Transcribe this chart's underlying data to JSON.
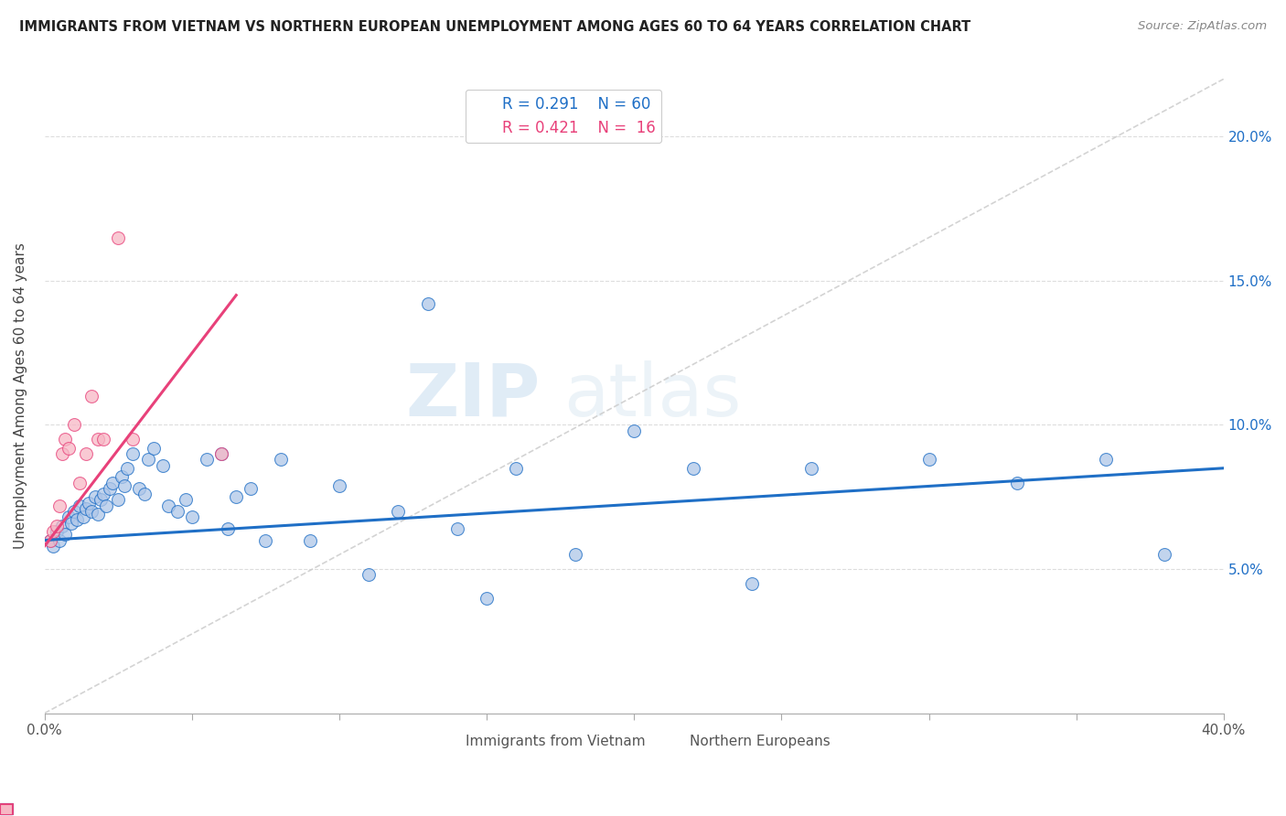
{
  "title": "IMMIGRANTS FROM VIETNAM VS NORTHERN EUROPEAN UNEMPLOYMENT AMONG AGES 60 TO 64 YEARS CORRELATION CHART",
  "source": "Source: ZipAtlas.com",
  "ylabel": "Unemployment Among Ages 60 to 64 years",
  "ylabel_right_ticks": [
    "5.0%",
    "10.0%",
    "15.0%",
    "20.0%"
  ],
  "ylabel_right_vals": [
    0.05,
    0.1,
    0.15,
    0.2
  ],
  "x_range": [
    0.0,
    0.4
  ],
  "y_range": [
    0.0,
    0.22
  ],
  "legend_blue_r": "0.291",
  "legend_blue_n": "60",
  "legend_pink_r": "0.421",
  "legend_pink_n": "16",
  "blue_color": "#aec6e8",
  "pink_color": "#f7b7c5",
  "trendline_blue_color": "#1f6fc6",
  "trendline_pink_color": "#e8417a",
  "trendline_dashed_color": "#CCCCCC",
  "watermark_zip": "ZIP",
  "watermark_atlas": "atlas",
  "blue_scatter_x": [
    0.002,
    0.003,
    0.004,
    0.005,
    0.006,
    0.007,
    0.008,
    0.009,
    0.01,
    0.011,
    0.012,
    0.013,
    0.014,
    0.015,
    0.016,
    0.017,
    0.018,
    0.019,
    0.02,
    0.021,
    0.022,
    0.023,
    0.025,
    0.026,
    0.027,
    0.028,
    0.03,
    0.032,
    0.034,
    0.035,
    0.037,
    0.04,
    0.042,
    0.045,
    0.048,
    0.05,
    0.055,
    0.06,
    0.062,
    0.065,
    0.07,
    0.075,
    0.08,
    0.09,
    0.1,
    0.11,
    0.12,
    0.13,
    0.14,
    0.15,
    0.16,
    0.18,
    0.2,
    0.22,
    0.24,
    0.26,
    0.3,
    0.33,
    0.36,
    0.38
  ],
  "blue_scatter_y": [
    0.06,
    0.058,
    0.063,
    0.06,
    0.065,
    0.062,
    0.068,
    0.066,
    0.07,
    0.067,
    0.072,
    0.068,
    0.071,
    0.073,
    0.07,
    0.075,
    0.069,
    0.074,
    0.076,
    0.072,
    0.078,
    0.08,
    0.074,
    0.082,
    0.079,
    0.085,
    0.09,
    0.078,
    0.076,
    0.088,
    0.092,
    0.086,
    0.072,
    0.07,
    0.074,
    0.068,
    0.088,
    0.09,
    0.064,
    0.075,
    0.078,
    0.06,
    0.088,
    0.06,
    0.079,
    0.048,
    0.07,
    0.142,
    0.064,
    0.04,
    0.085,
    0.055,
    0.098,
    0.085,
    0.045,
    0.085,
    0.088,
    0.08,
    0.088,
    0.055
  ],
  "pink_scatter_x": [
    0.002,
    0.003,
    0.004,
    0.005,
    0.006,
    0.007,
    0.008,
    0.01,
    0.012,
    0.014,
    0.016,
    0.018,
    0.02,
    0.025,
    0.03,
    0.06
  ],
  "pink_scatter_y": [
    0.06,
    0.063,
    0.065,
    0.072,
    0.09,
    0.095,
    0.092,
    0.1,
    0.08,
    0.09,
    0.11,
    0.095,
    0.095,
    0.165,
    0.095,
    0.09
  ],
  "blue_trend_x": [
    0.0,
    0.4
  ],
  "blue_trend_y": [
    0.06,
    0.085
  ],
  "pink_trend_x": [
    0.0,
    0.065
  ],
  "pink_trend_y": [
    0.058,
    0.145
  ]
}
